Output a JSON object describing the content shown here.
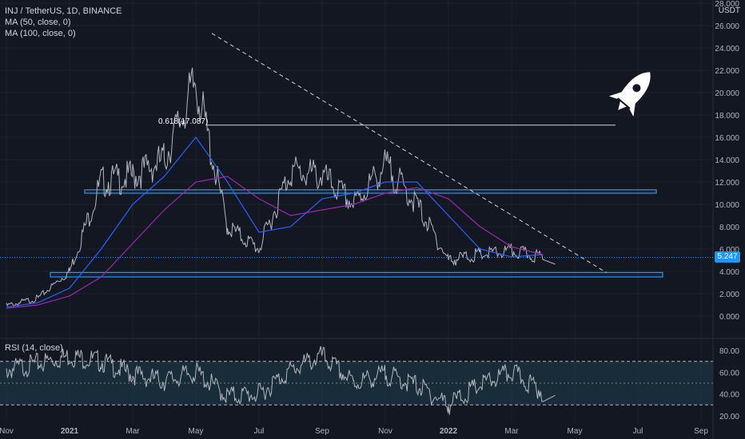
{
  "legend": {
    "title": "INJ / TetherUS, 1D, BINANCE",
    "ma50": "MA (50, close, 0)",
    "ma100": "MA (100, close, 0)",
    "rsi": "RSI (14, close)"
  },
  "currency": "USDT",
  "last_price": "5.247",
  "fib_label": "0.618(17.087)",
  "colors": {
    "background": "#131722",
    "candles": "#b2b5be",
    "ma50": "#2962ff",
    "ma100": "#9c27b0",
    "boxes": "#2196f3",
    "rsi_line": "#b2b5be",
    "rsi_band": "#1e3a4a"
  },
  "icons": [
    "rocket-icon"
  ],
  "chart_data": [
    {
      "type": "line",
      "title": "INJ / TetherUS, 1D, BINANCE",
      "x_ticks": [
        "Nov",
        "2021",
        "Mar",
        "May",
        "Jul",
        "Sep",
        "Nov",
        "2022",
        "Mar",
        "May",
        "Jul",
        "Sep"
      ],
      "y_ticks": [
        "28.000",
        "26.000",
        "24.000",
        "22.000",
        "20.000",
        "18.000",
        "16.000",
        "14.000",
        "12.000",
        "10.000",
        "8.000",
        "6.000",
        "4.000",
        "2.000",
        "0.000"
      ],
      "ylim": [
        -2,
        28
      ],
      "x": [
        "2020-11",
        "2020-12",
        "2021-01",
        "2021-02",
        "2021-03",
        "2021-04",
        "2021-05",
        "2021-06",
        "2021-07",
        "2021-08",
        "2021-09",
        "2021-10",
        "2021-11",
        "2021-12",
        "2022-01",
        "2022-02",
        "2022-03",
        "2022-04"
      ],
      "series": [
        {
          "name": "INJ / TetherUS",
          "values": [
            0.9,
            1.6,
            4.0,
            12.0,
            12.5,
            14.0,
            21.0,
            8.0,
            6.0,
            13.0,
            12.5,
            10.0,
            13.5,
            10.0,
            5.0,
            5.5,
            5.8,
            5.25
          ]
        },
        {
          "name": "MA (50, close, 0)",
          "values": [
            0.8,
            1.2,
            2.5,
            6.0,
            10.0,
            12.5,
            16.0,
            12.0,
            7.5,
            8.0,
            10.5,
            11.0,
            12.0,
            12.0,
            9.0,
            6.0,
            5.3,
            5.5
          ]
        },
        {
          "name": "MA (100, close, 0)",
          "values": [
            0.7,
            1.0,
            1.8,
            3.5,
            6.5,
            9.5,
            12.0,
            12.5,
            10.5,
            9.0,
            9.5,
            10.0,
            11.0,
            11.5,
            10.5,
            8.0,
            6.2,
            5.5
          ]
        }
      ],
      "annotations": [
        {
          "type": "hline",
          "label": "0.618(17.087)",
          "value": 17.087
        },
        {
          "type": "range",
          "low": 11.0,
          "high": 11.3
        },
        {
          "type": "range",
          "low": 3.5,
          "high": 3.9
        },
        {
          "type": "trendline",
          "from": [
            "2021-05",
            25.3
          ],
          "to": [
            "2022-06",
            3.9
          ]
        }
      ],
      "last_value": 5.247
    },
    {
      "type": "line",
      "title": "RSI (14, close)",
      "y_ticks": [
        "80.00",
        "60.00",
        "40.00",
        "20.00"
      ],
      "ylim": [
        15,
        85
      ],
      "bands": [
        30,
        70
      ],
      "x": [
        "2020-11",
        "2020-12",
        "2021-01",
        "2021-02",
        "2021-03",
        "2021-04",
        "2021-05",
        "2021-06",
        "2021-07",
        "2021-08",
        "2021-09",
        "2021-10",
        "2021-11",
        "2021-12",
        "2022-01",
        "2022-02",
        "2022-03",
        "2022-04"
      ],
      "values": [
        62,
        68,
        75,
        70,
        58,
        52,
        60,
        38,
        40,
        62,
        75,
        50,
        58,
        48,
        30,
        48,
        60,
        42
      ]
    }
  ]
}
